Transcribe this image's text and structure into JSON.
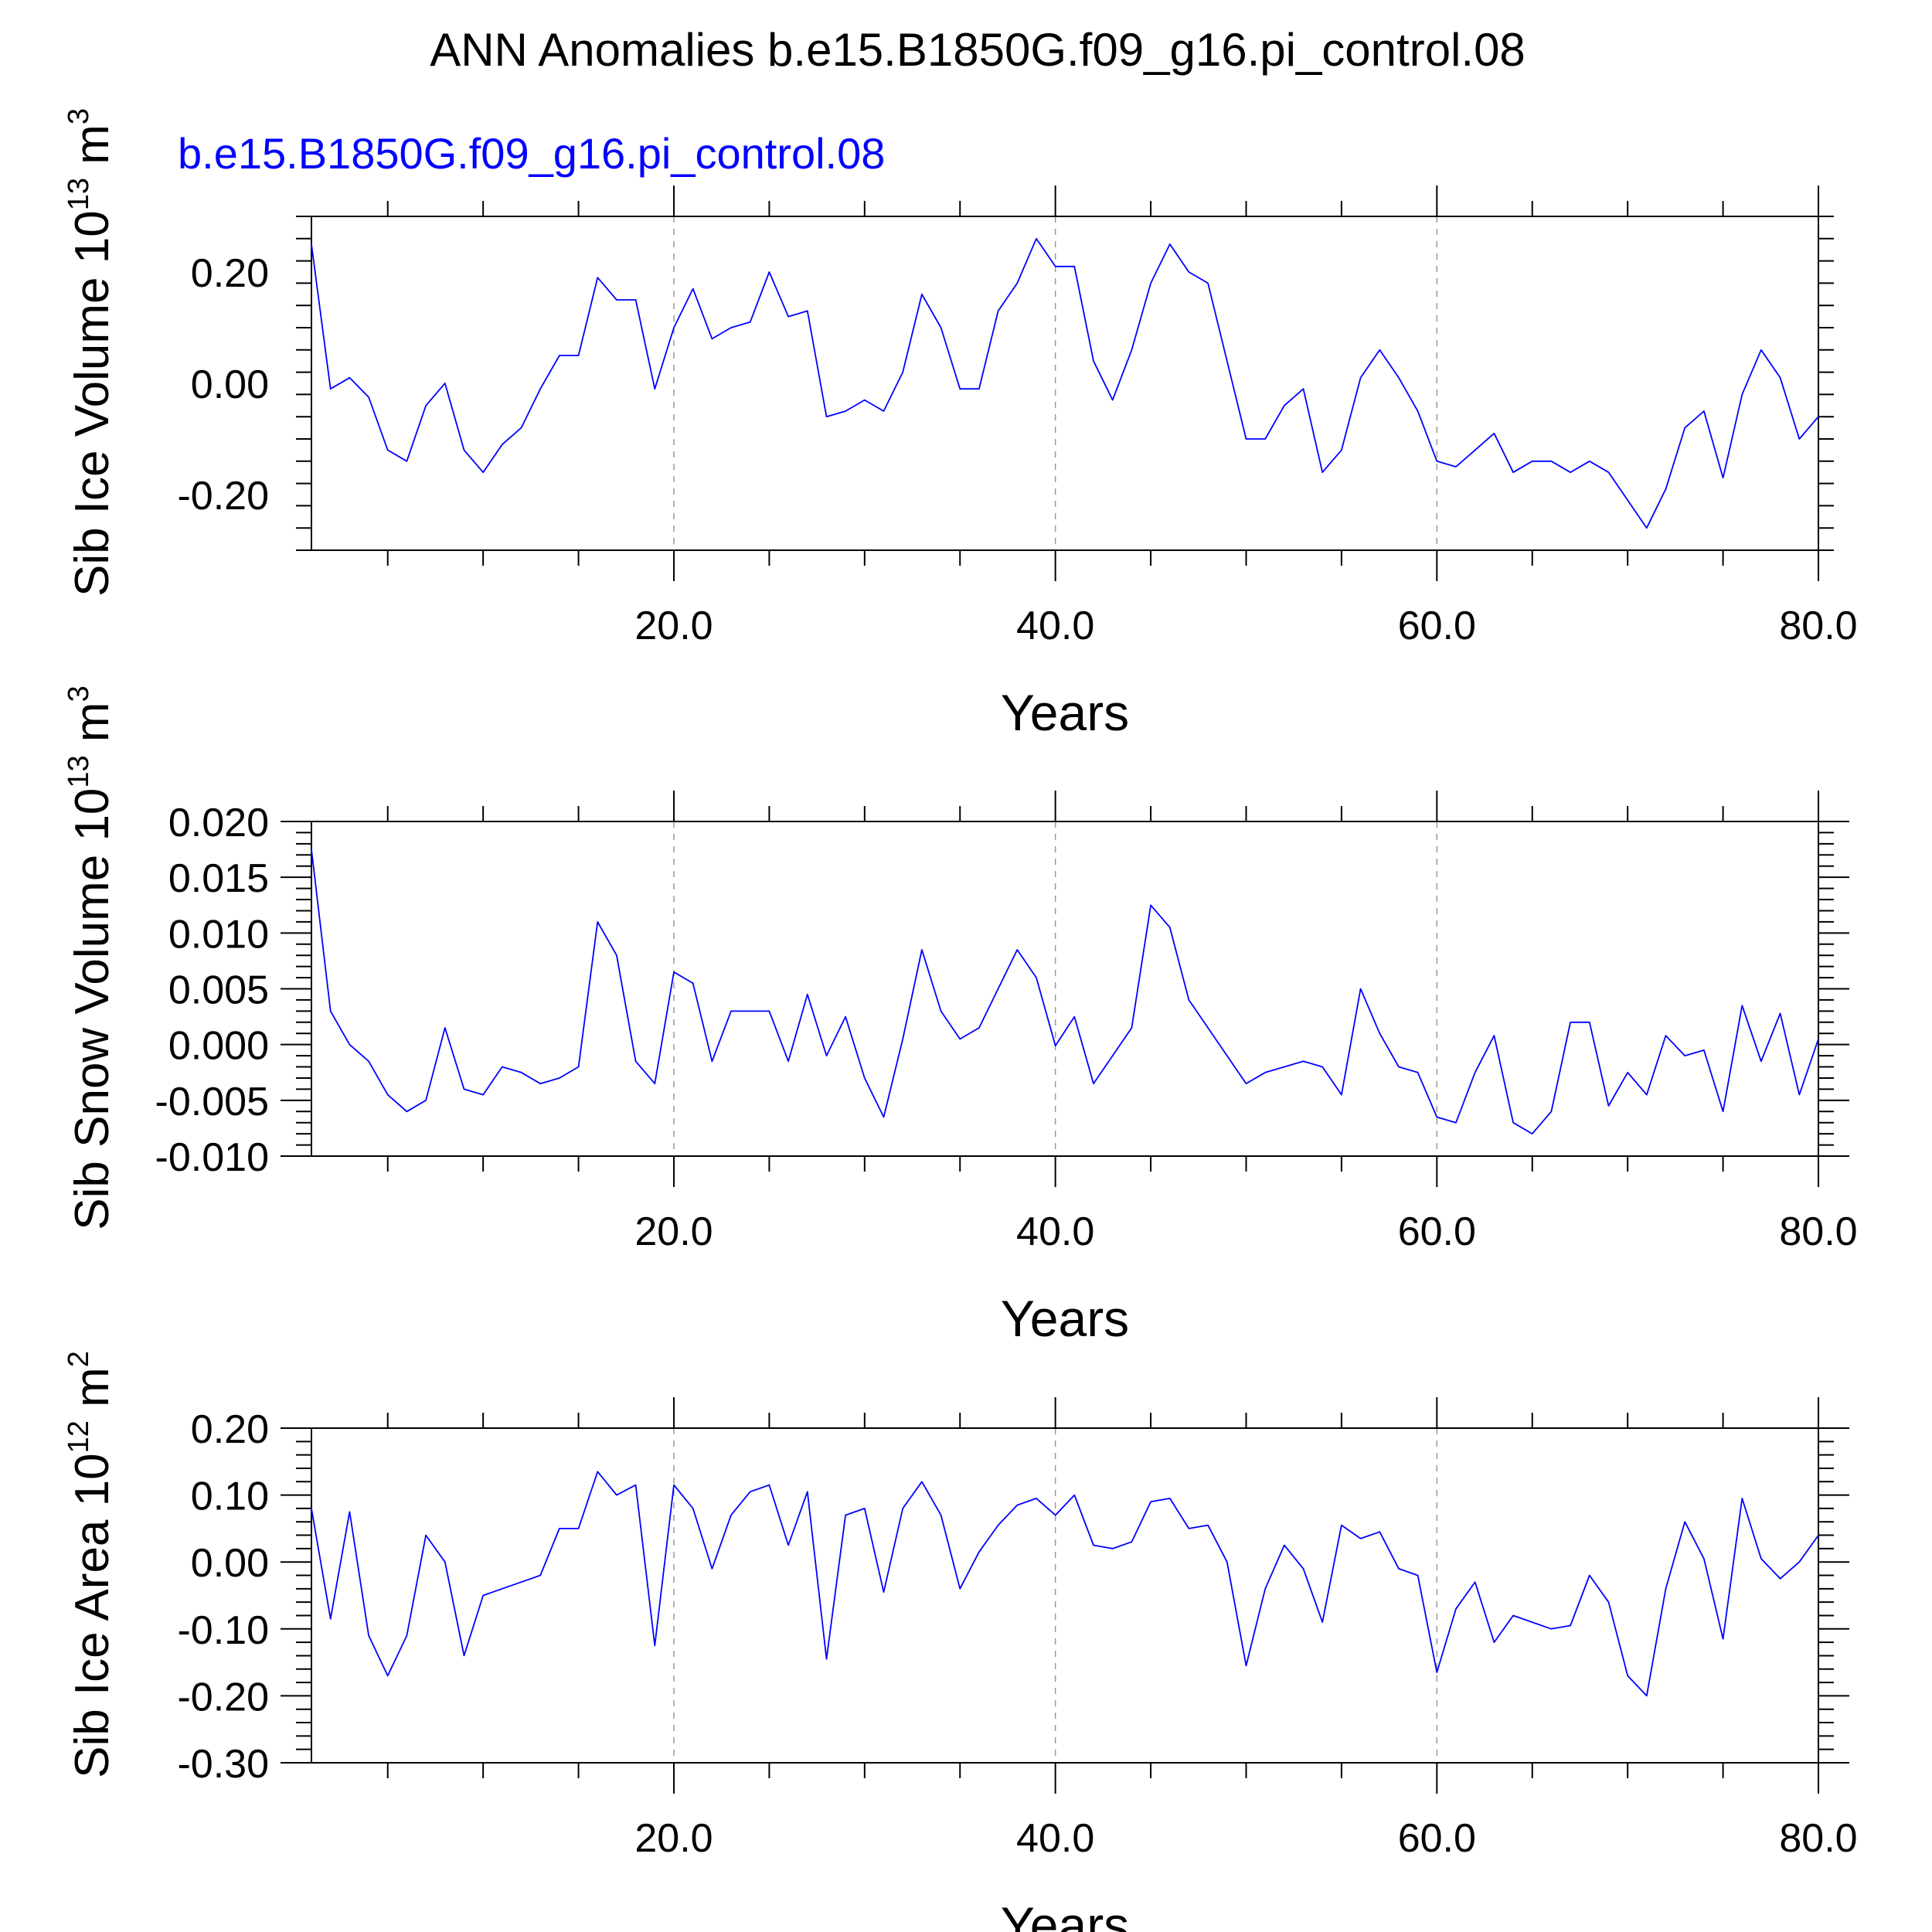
{
  "title": "ANN Anomalies b.e15.B1850G.f09_g16.pi_control.08",
  "series_label": "b.e15.B1850G.f09_g16.pi_control.08",
  "colors": {
    "series": "#0000ff",
    "axis": "#000000",
    "grid": "#999999",
    "series_label": "#0000ff"
  },
  "chart_data": [
    {
      "type": "line",
      "ylabel": {
        "text": "Sib Ice Volume 10",
        "exp": "13",
        "unit": " m",
        "unit_exp": "3"
      },
      "xlabel": "Years",
      "xlim": [
        1,
        80
      ],
      "ylim": [
        -0.3,
        0.3
      ],
      "yticks": [
        -0.2,
        0.0,
        0.2
      ],
      "ytick_labels": [
        "-0.20",
        "0.00",
        "0.20"
      ],
      "xticks": [
        20,
        40,
        60,
        80
      ],
      "xtick_labels": [
        "20.0",
        "40.0",
        "60.0",
        "80.0"
      ],
      "grid": "dashed vertical at major x ticks",
      "series": [
        {
          "x": [
            1,
            2,
            3,
            4,
            5,
            6,
            7,
            8,
            9,
            10,
            11,
            12,
            13,
            14,
            15,
            16,
            17,
            18,
            19,
            20,
            21,
            22,
            23,
            24,
            25,
            26,
            27,
            28,
            29,
            30,
            31,
            32,
            33,
            34,
            35,
            36,
            37,
            38,
            39,
            40,
            41,
            42,
            43,
            44,
            45,
            46,
            47,
            48,
            49,
            50,
            51,
            52,
            53,
            54,
            55,
            56,
            57,
            58,
            59,
            60,
            61,
            62,
            63,
            64,
            65,
            66,
            67,
            68,
            69,
            70,
            71,
            72,
            73,
            74,
            75,
            76,
            77,
            78,
            79,
            80
          ],
          "values": [
            0.25,
            -0.01,
            0.01,
            -0.025,
            -0.12,
            -0.14,
            -0.04,
            0.0,
            -0.12,
            -0.16,
            -0.11,
            -0.08,
            -0.01,
            0.05,
            0.05,
            0.19,
            0.15,
            0.15,
            -0.01,
            0.1,
            0.17,
            0.08,
            0.1,
            0.11,
            0.2,
            0.12,
            0.13,
            -0.06,
            -0.05,
            -0.03,
            -0.05,
            0.02,
            0.16,
            0.1,
            -0.01,
            -0.01,
            0.13,
            0.18,
            0.26,
            0.21,
            0.21,
            0.04,
            -0.03,
            0.06,
            0.18,
            0.25,
            0.2,
            0.18,
            0.04,
            -0.1,
            -0.1,
            -0.04,
            -0.01,
            -0.16,
            -0.12,
            0.01,
            0.06,
            0.01,
            -0.05,
            -0.14,
            -0.15,
            -0.12,
            -0.09,
            -0.16,
            -0.14,
            -0.14,
            -0.16,
            -0.14,
            -0.16,
            -0.21,
            -0.26,
            -0.19,
            -0.08,
            -0.05,
            -0.17,
            -0.02,
            0.06,
            0.01,
            -0.1,
            -0.06
          ]
        }
      ]
    },
    {
      "type": "line",
      "ylabel": {
        "text": "Sib Snow Volume 10",
        "exp": "13",
        "unit": " m",
        "unit_exp": "3"
      },
      "xlabel": "Years",
      "xlim": [
        1,
        80
      ],
      "ylim": [
        -0.01,
        0.02
      ],
      "yticks": [
        -0.01,
        -0.005,
        0.0,
        0.005,
        0.01,
        0.015,
        0.02
      ],
      "ytick_labels": [
        "-0.010",
        "-0.005",
        "0.000",
        "0.005",
        "0.010",
        "0.015",
        "0.020"
      ],
      "xticks": [
        20,
        40,
        60,
        80
      ],
      "xtick_labels": [
        "20.0",
        "40.0",
        "60.0",
        "80.0"
      ],
      "grid": "dashed vertical at major x ticks",
      "series": [
        {
          "x": [
            1,
            2,
            3,
            4,
            5,
            6,
            7,
            8,
            9,
            10,
            11,
            12,
            13,
            14,
            15,
            16,
            17,
            18,
            19,
            20,
            21,
            22,
            23,
            24,
            25,
            26,
            27,
            28,
            29,
            30,
            31,
            32,
            33,
            34,
            35,
            36,
            37,
            38,
            39,
            40,
            41,
            42,
            43,
            44,
            45,
            46,
            47,
            48,
            49,
            50,
            51,
            52,
            53,
            54,
            55,
            56,
            57,
            58,
            59,
            60,
            61,
            62,
            63,
            64,
            65,
            66,
            67,
            68,
            69,
            70,
            71,
            72,
            73,
            74,
            75,
            76,
            77,
            78,
            79,
            80
          ],
          "values": [
            0.0175,
            0.003,
            0.0,
            -0.0015,
            -0.0045,
            -0.006,
            -0.005,
            0.0015,
            -0.004,
            -0.0045,
            -0.002,
            -0.0025,
            -0.0035,
            -0.003,
            -0.002,
            0.011,
            0.008,
            -0.0015,
            -0.0035,
            0.0065,
            0.0055,
            -0.0015,
            0.003,
            0.003,
            0.003,
            -0.0015,
            0.0045,
            -0.001,
            0.0025,
            -0.003,
            -0.0065,
            0.0005,
            0.0085,
            0.003,
            0.0005,
            0.0015,
            0.005,
            0.0085,
            0.006,
            -0.0001,
            0.0025,
            -0.0035,
            -0.001,
            0.0015,
            0.0125,
            0.0105,
            0.004,
            0.0015,
            -0.001,
            -0.0035,
            -0.0025,
            -0.002,
            -0.0015,
            -0.002,
            -0.0045,
            0.005,
            0.001,
            -0.002,
            -0.0025,
            -0.0065,
            -0.007,
            -0.0025,
            0.0008,
            -0.007,
            -0.008,
            -0.006,
            0.002,
            0.002,
            -0.0055,
            -0.0025,
            -0.0045,
            0.0008,
            -0.001,
            -0.0005,
            -0.006,
            0.0035,
            -0.0015,
            0.0028,
            -0.0045,
            0.0005
          ]
        }
      ]
    },
    {
      "type": "line",
      "ylabel": {
        "text": "Sib Ice Area 10",
        "exp": "12",
        "unit": " m",
        "unit_exp": "2"
      },
      "xlabel": "Years",
      "xlim": [
        1,
        80
      ],
      "ylim": [
        -0.3,
        0.2
      ],
      "yticks": [
        -0.3,
        -0.2,
        -0.1,
        0.0,
        0.1,
        0.2
      ],
      "ytick_labels": [
        "-0.30",
        "-0.20",
        "-0.10",
        "0.00",
        "0.10",
        "0.20"
      ],
      "xticks": [
        20,
        40,
        60,
        80
      ],
      "xtick_labels": [
        "20.0",
        "40.0",
        "60.0",
        "80.0"
      ],
      "grid": "dashed vertical at major x ticks",
      "series": [
        {
          "x": [
            1,
            2,
            3,
            4,
            5,
            6,
            7,
            8,
            9,
            10,
            11,
            12,
            13,
            14,
            15,
            16,
            17,
            18,
            19,
            20,
            21,
            22,
            23,
            24,
            25,
            26,
            27,
            28,
            29,
            30,
            31,
            32,
            33,
            34,
            35,
            36,
            37,
            38,
            39,
            40,
            41,
            42,
            43,
            44,
            45,
            46,
            47,
            48,
            49,
            50,
            51,
            52,
            53,
            54,
            55,
            56,
            57,
            58,
            59,
            60,
            61,
            62,
            63,
            64,
            65,
            66,
            67,
            68,
            69,
            70,
            71,
            72,
            73,
            74,
            75,
            76,
            77,
            78,
            79,
            80
          ],
          "values": [
            0.08,
            -0.085,
            0.075,
            -0.11,
            -0.17,
            -0.11,
            0.04,
            0.0,
            -0.14,
            -0.05,
            -0.04,
            -0.03,
            -0.02,
            0.05,
            0.05,
            0.135,
            0.1,
            0.115,
            -0.125,
            0.115,
            0.08,
            -0.01,
            0.07,
            0.105,
            0.115,
            0.025,
            0.105,
            -0.145,
            0.07,
            0.08,
            -0.045,
            0.08,
            0.12,
            0.07,
            -0.04,
            0.015,
            0.055,
            0.085,
            0.095,
            0.07,
            0.1,
            0.025,
            0.02,
            0.03,
            0.09,
            0.095,
            0.05,
            0.055,
            0.0,
            -0.155,
            -0.04,
            0.025,
            -0.01,
            -0.09,
            0.055,
            0.035,
            0.045,
            -0.01,
            -0.02,
            -0.165,
            -0.07,
            -0.03,
            -0.12,
            -0.08,
            -0.09,
            -0.1,
            -0.095,
            -0.02,
            -0.06,
            -0.17,
            -0.2,
            -0.04,
            0.06,
            0.005,
            -0.115,
            0.095,
            0.005,
            -0.025,
            0.0,
            0.04
          ]
        }
      ]
    }
  ]
}
